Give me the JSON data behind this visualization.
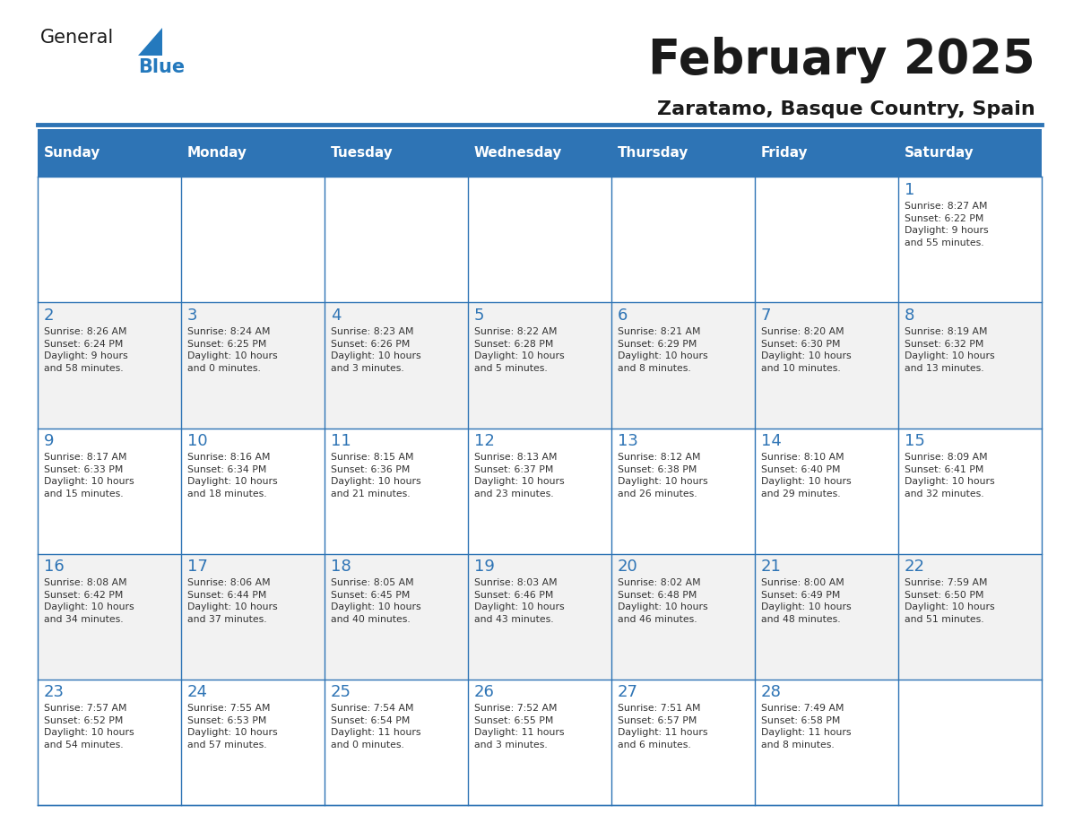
{
  "title": "February 2025",
  "subtitle": "Zaratamo, Basque Country, Spain",
  "header_bg": "#2E74B5",
  "header_text_color": "#FFFFFF",
  "cell_bg_light": "#FFFFFF",
  "cell_bg_dark": "#F2F2F2",
  "border_color": "#2E74B5",
  "day_number_color": "#2E74B5",
  "cell_text_color": "#333333",
  "days_of_week": [
    "Sunday",
    "Monday",
    "Tuesday",
    "Wednesday",
    "Thursday",
    "Friday",
    "Saturday"
  ],
  "calendar_data": [
    [
      null,
      null,
      null,
      null,
      null,
      null,
      {
        "day": 1,
        "sunrise": "8:27 AM",
        "sunset": "6:22 PM",
        "daylight": "9 hours\nand 55 minutes."
      }
    ],
    [
      {
        "day": 2,
        "sunrise": "8:26 AM",
        "sunset": "6:24 PM",
        "daylight": "9 hours\nand 58 minutes."
      },
      {
        "day": 3,
        "sunrise": "8:24 AM",
        "sunset": "6:25 PM",
        "daylight": "10 hours\nand 0 minutes."
      },
      {
        "day": 4,
        "sunrise": "8:23 AM",
        "sunset": "6:26 PM",
        "daylight": "10 hours\nand 3 minutes."
      },
      {
        "day": 5,
        "sunrise": "8:22 AM",
        "sunset": "6:28 PM",
        "daylight": "10 hours\nand 5 minutes."
      },
      {
        "day": 6,
        "sunrise": "8:21 AM",
        "sunset": "6:29 PM",
        "daylight": "10 hours\nand 8 minutes."
      },
      {
        "day": 7,
        "sunrise": "8:20 AM",
        "sunset": "6:30 PM",
        "daylight": "10 hours\nand 10 minutes."
      },
      {
        "day": 8,
        "sunrise": "8:19 AM",
        "sunset": "6:32 PM",
        "daylight": "10 hours\nand 13 minutes."
      }
    ],
    [
      {
        "day": 9,
        "sunrise": "8:17 AM",
        "sunset": "6:33 PM",
        "daylight": "10 hours\nand 15 minutes."
      },
      {
        "day": 10,
        "sunrise": "8:16 AM",
        "sunset": "6:34 PM",
        "daylight": "10 hours\nand 18 minutes."
      },
      {
        "day": 11,
        "sunrise": "8:15 AM",
        "sunset": "6:36 PM",
        "daylight": "10 hours\nand 21 minutes."
      },
      {
        "day": 12,
        "sunrise": "8:13 AM",
        "sunset": "6:37 PM",
        "daylight": "10 hours\nand 23 minutes."
      },
      {
        "day": 13,
        "sunrise": "8:12 AM",
        "sunset": "6:38 PM",
        "daylight": "10 hours\nand 26 minutes."
      },
      {
        "day": 14,
        "sunrise": "8:10 AM",
        "sunset": "6:40 PM",
        "daylight": "10 hours\nand 29 minutes."
      },
      {
        "day": 15,
        "sunrise": "8:09 AM",
        "sunset": "6:41 PM",
        "daylight": "10 hours\nand 32 minutes."
      }
    ],
    [
      {
        "day": 16,
        "sunrise": "8:08 AM",
        "sunset": "6:42 PM",
        "daylight": "10 hours\nand 34 minutes."
      },
      {
        "day": 17,
        "sunrise": "8:06 AM",
        "sunset": "6:44 PM",
        "daylight": "10 hours\nand 37 minutes."
      },
      {
        "day": 18,
        "sunrise": "8:05 AM",
        "sunset": "6:45 PM",
        "daylight": "10 hours\nand 40 minutes."
      },
      {
        "day": 19,
        "sunrise": "8:03 AM",
        "sunset": "6:46 PM",
        "daylight": "10 hours\nand 43 minutes."
      },
      {
        "day": 20,
        "sunrise": "8:02 AM",
        "sunset": "6:48 PM",
        "daylight": "10 hours\nand 46 minutes."
      },
      {
        "day": 21,
        "sunrise": "8:00 AM",
        "sunset": "6:49 PM",
        "daylight": "10 hours\nand 48 minutes."
      },
      {
        "day": 22,
        "sunrise": "7:59 AM",
        "sunset": "6:50 PM",
        "daylight": "10 hours\nand 51 minutes."
      }
    ],
    [
      {
        "day": 23,
        "sunrise": "7:57 AM",
        "sunset": "6:52 PM",
        "daylight": "10 hours\nand 54 minutes."
      },
      {
        "day": 24,
        "sunrise": "7:55 AM",
        "sunset": "6:53 PM",
        "daylight": "10 hours\nand 57 minutes."
      },
      {
        "day": 25,
        "sunrise": "7:54 AM",
        "sunset": "6:54 PM",
        "daylight": "11 hours\nand 0 minutes."
      },
      {
        "day": 26,
        "sunrise": "7:52 AM",
        "sunset": "6:55 PM",
        "daylight": "11 hours\nand 3 minutes."
      },
      {
        "day": 27,
        "sunrise": "7:51 AM",
        "sunset": "6:57 PM",
        "daylight": "11 hours\nand 6 minutes."
      },
      {
        "day": 28,
        "sunrise": "7:49 AM",
        "sunset": "6:58 PM",
        "daylight": "11 hours\nand 8 minutes."
      },
      null
    ]
  ],
  "logo_color_general": "#1a1a1a",
  "logo_color_blue": "#2479BD",
  "logo_triangle_color": "#2479BD"
}
